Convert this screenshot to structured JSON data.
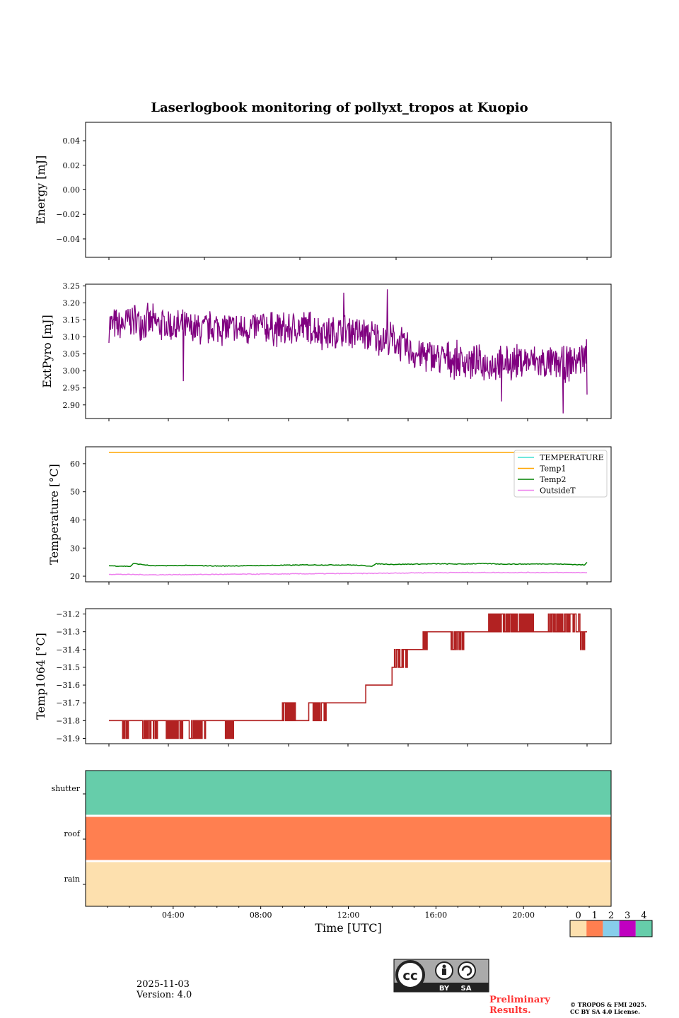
{
  "chart_data": [
    {
      "type": "line",
      "title": "Laserlogbook monitoring of pollyxt_tropos at Kuopio",
      "xlabel": "",
      "ylabel": "Energy [mJ]",
      "ylim": [
        -0.055,
        0.055
      ],
      "yticks": [
        0.04,
        0.02,
        0.0,
        -0.02,
        -0.04
      ],
      "ytick_labels": [
        "0.04",
        "0.02",
        "0.00",
        "−0.02",
        "−0.04"
      ],
      "series": []
    },
    {
      "type": "line",
      "ylabel": "ExtPyro [mJ]",
      "ylim": [
        2.86,
        3.255
      ],
      "yticks": [
        3.25,
        3.2,
        3.15,
        3.1,
        3.05,
        3.0,
        2.95,
        2.9
      ],
      "ytick_labels": [
        "3.25",
        "3.20",
        "3.15",
        "3.10",
        "3.05",
        "3.00",
        "2.95",
        "2.90"
      ],
      "series": [
        {
          "name": "ExtPyro",
          "color": "#800080",
          "x": [
            1.0,
            1.5,
            2.0,
            3.0,
            4.0,
            5.0,
            6.0,
            7.0,
            8.0,
            9.0,
            10.0,
            11.0,
            12.0,
            13.0,
            14.0,
            15.0,
            16.0,
            17.0,
            18.0,
            19.0,
            20.0,
            21.0,
            22.0,
            22.8
          ],
          "values": [
            3.14,
            3.13,
            3.15,
            3.14,
            3.13,
            3.12,
            3.13,
            3.12,
            3.13,
            3.12,
            3.13,
            3.11,
            3.12,
            3.1,
            3.09,
            3.05,
            3.04,
            3.03,
            3.02,
            3.02,
            3.03,
            3.02,
            3.02,
            3.05
          ],
          "noise_amplitude": 0.05,
          "spikes": [
            [
              4.4,
              2.97
            ],
            [
              11.7,
              3.23
            ],
            [
              13.7,
              3.24
            ],
            [
              18.9,
              2.91
            ],
            [
              21.7,
              2.875
            ],
            [
              22.8,
              2.93
            ]
          ]
        }
      ]
    },
    {
      "type": "line",
      "ylabel": "Temperature [°C]",
      "ylim": [
        18,
        66
      ],
      "yticks": [
        60,
        50,
        40,
        30,
        20
      ],
      "ytick_labels": [
        "60",
        "50",
        "40",
        "30",
        "20"
      ],
      "legend": {
        "position": "top-right",
        "entries": [
          "TEMPERATURE",
          "Temp1",
          "Temp2",
          "OutsideT"
        ]
      },
      "series": [
        {
          "name": "TEMPERATURE",
          "color": "#40e0d0",
          "x": [],
          "values": []
        },
        {
          "name": "Temp1",
          "color": "#ffa500",
          "x": [
            1.0,
            22.8
          ],
          "values": [
            64,
            64
          ]
        },
        {
          "name": "Temp2",
          "color": "#008000",
          "x": [
            1.0,
            2.0,
            2.1,
            3.0,
            4.0,
            5.0,
            6.0,
            7.0,
            8.0,
            9.0,
            10.0,
            11.0,
            12.0,
            13.0,
            13.2,
            14.0,
            15.0,
            16.0,
            17.0,
            18.0,
            19.0,
            20.0,
            21.0,
            22.0,
            22.7,
            22.8
          ],
          "values": [
            23.7,
            23.5,
            24.5,
            23.7,
            23.8,
            23.8,
            23.6,
            23.7,
            23.8,
            23.9,
            24.0,
            24.0,
            24.0,
            23.6,
            24.4,
            24.2,
            24.3,
            24.4,
            24.3,
            24.5,
            24.3,
            24.3,
            24.4,
            24.2,
            24.0,
            25.0
          ]
        },
        {
          "name": "OutsideT",
          "color": "#ee82ee",
          "x": [
            1.0,
            3.0,
            5.0,
            7.0,
            9.0,
            11.0,
            13.0,
            15.0,
            17.0,
            19.0,
            21.0,
            22.8
          ],
          "values": [
            20.7,
            20.5,
            20.6,
            20.7,
            20.8,
            20.9,
            21.0,
            21.2,
            21.3,
            21.3,
            21.3,
            21.3
          ]
        }
      ]
    },
    {
      "type": "line",
      "ylabel": "Temp1064 [°C]",
      "ylim": [
        -31.93,
        -31.17
      ],
      "yticks": [
        -31.2,
        -31.3,
        -31.4,
        -31.5,
        -31.6,
        -31.7,
        -31.8,
        -31.9
      ],
      "ytick_labels": [
        "−31.2",
        "−31.3",
        "−31.4",
        "−31.5",
        "−31.6",
        "−31.7",
        "−31.8",
        "−31.9"
      ],
      "series": [
        {
          "name": "Temp1064",
          "color": "#b22222",
          "steps": [
            [
              1.0,
              -31.8
            ],
            [
              9.5,
              -31.8
            ],
            [
              10.1,
              -31.7
            ],
            [
              12.0,
              -31.7
            ],
            [
              12.7,
              -31.6
            ],
            [
              13.7,
              -31.6
            ],
            [
              13.9,
              -31.5
            ],
            [
              14.3,
              -31.5
            ],
            [
              14.6,
              -31.4
            ],
            [
              15.2,
              -31.4
            ],
            [
              15.5,
              -31.3
            ],
            [
              22.8,
              -31.3
            ]
          ],
          "flicker_down": [
            [
              1.6,
              1.9,
              -31.9
            ],
            [
              2.5,
              3.2,
              -31.9
            ],
            [
              3.6,
              4.4,
              -31.9
            ],
            [
              4.6,
              5.4,
              -31.9
            ],
            [
              6.3,
              6.7,
              -31.9
            ],
            [
              10.3,
              10.9,
              -31.8
            ],
            [
              16.6,
              17.2,
              -31.4
            ],
            [
              21.0,
              21.1,
              -31.4
            ],
            [
              22.5,
              22.7,
              -31.4
            ]
          ],
          "flicker_up": [
            [
              8.9,
              9.5,
              -31.7
            ],
            [
              12.7,
              13.0,
              -31.6
            ],
            [
              13.2,
              13.6,
              -31.6
            ],
            [
              14.0,
              14.6,
              -31.4
            ],
            [
              15.3,
              15.8,
              -31.3
            ],
            [
              18.3,
              20.4,
              -31.2
            ],
            [
              21.0,
              22.5,
              -31.2
            ]
          ]
        }
      ]
    },
    {
      "type": "heatmap",
      "xlabel": "Time [UTC]",
      "xlim": [
        0,
        24
      ],
      "xticks": [
        4,
        8,
        12,
        16,
        20
      ],
      "xtick_labels": [
        "04:00",
        "08:00",
        "12:00",
        "16:00",
        "20:00"
      ],
      "rows": [
        "shutter",
        "roof",
        "rain"
      ],
      "row_values": [
        4,
        1,
        0
      ],
      "colorbar": {
        "ticks": [
          "0",
          "1",
          "2",
          "3",
          "4"
        ],
        "colors": [
          "#fde0ae",
          "#ff7f50",
          "#87ceeb",
          "#c000c0",
          "#66cdaa"
        ]
      }
    }
  ],
  "footer": {
    "date": "2025-11-03",
    "version": "Version: 4.0",
    "license_badge": [
      "BY",
      "SA"
    ],
    "preliminary_line1": "Preliminary",
    "preliminary_line2": "Results.",
    "copyright_line1": "© TROPOS & FMI 2025.",
    "copyright_line2": "CC BY SA 4.0 License."
  }
}
